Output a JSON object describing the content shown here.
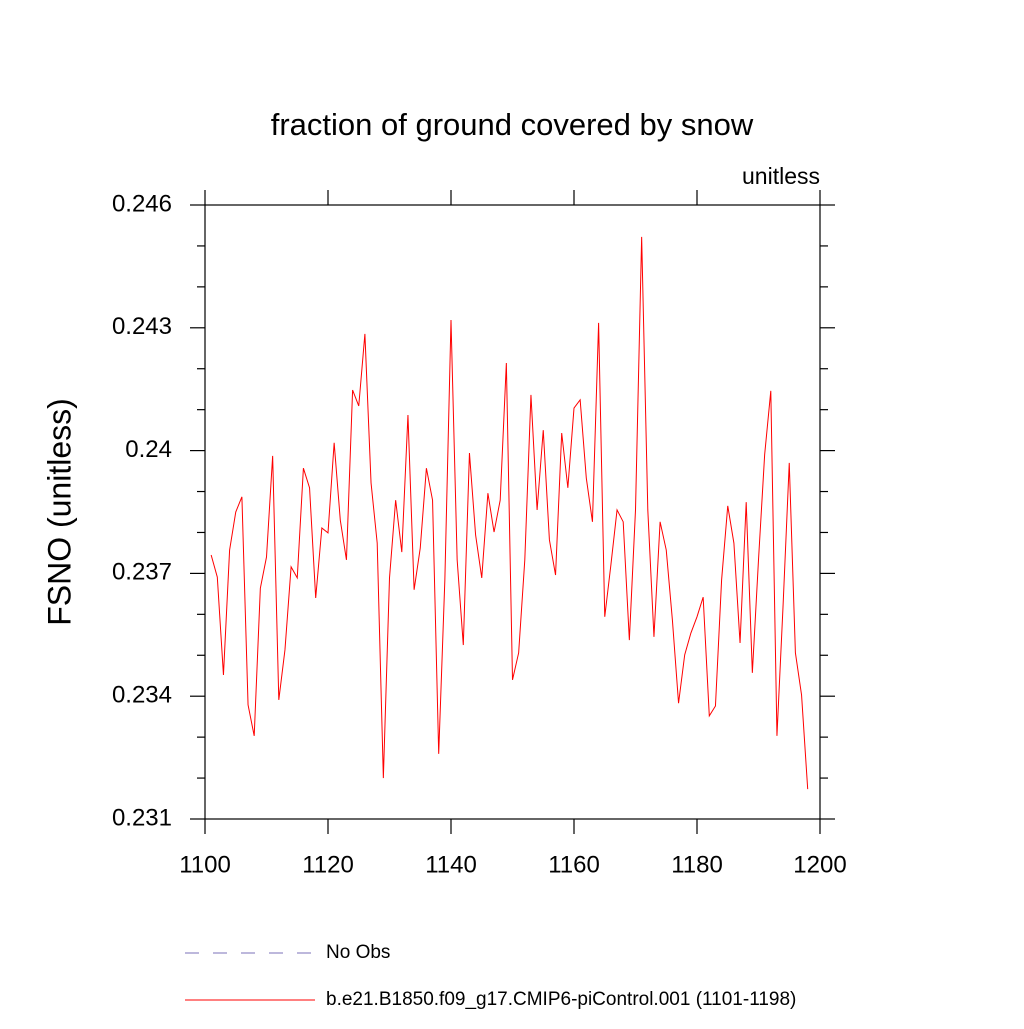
{
  "chart_data": {
    "type": "line",
    "title": "fraction of ground covered by snow",
    "subtitle_right": "unitless",
    "y_label": "FSNO  (unitless)",
    "xlim": [
      1100,
      1200
    ],
    "ylim": [
      0.231,
      0.246
    ],
    "xticks": [
      1100,
      1120,
      1140,
      1160,
      1180,
      1200
    ],
    "yticks": [
      0.231,
      0.234,
      0.237,
      0.24,
      0.243,
      0.246
    ],
    "yminorticks": [
      0.232,
      0.233,
      0.235,
      0.236,
      0.238,
      0.239,
      0.241,
      0.242,
      0.244,
      0.245
    ],
    "legend_extra": [
      {
        "name": "No Obs",
        "color": "#7b72b8",
        "dash": "dashed"
      }
    ],
    "x": [
      1101,
      1102,
      1103,
      1104,
      1105,
      1106,
      1107,
      1108,
      1109,
      1110,
      1111,
      1112,
      1113,
      1114,
      1115,
      1116,
      1117,
      1118,
      1119,
      1120,
      1121,
      1122,
      1123,
      1124,
      1125,
      1126,
      1127,
      1128,
      1129,
      1130,
      1131,
      1132,
      1133,
      1134,
      1135,
      1136,
      1137,
      1138,
      1139,
      1140,
      1141,
      1142,
      1143,
      1144,
      1145,
      1146,
      1147,
      1148,
      1149,
      1150,
      1151,
      1152,
      1153,
      1154,
      1155,
      1156,
      1157,
      1158,
      1159,
      1160,
      1161,
      1162,
      1163,
      1164,
      1165,
      1166,
      1167,
      1168,
      1169,
      1170,
      1171,
      1172,
      1173,
      1174,
      1175,
      1176,
      1177,
      1178,
      1179,
      1180,
      1181,
      1182,
      1183,
      1184,
      1185,
      1186,
      1187,
      1188,
      1189,
      1190,
      1191,
      1192,
      1193,
      1194,
      1195,
      1196,
      1197,
      1198
    ],
    "series": [
      {
        "name": "b.e21.B1850.f09_g17.CMIP6-piControl.001 (1101-1198)",
        "color": "#ff0000",
        "values": [
          0.23745,
          0.23691,
          0.23452,
          0.23757,
          0.2385,
          0.23887,
          0.23379,
          0.23303,
          0.23664,
          0.2374,
          0.23987,
          0.23391,
          0.23513,
          0.23716,
          0.23689,
          0.23957,
          0.23909,
          0.2364,
          0.23811,
          0.23799,
          0.24019,
          0.2383,
          0.23733,
          0.24148,
          0.24109,
          0.24285,
          0.23921,
          0.23774,
          0.232,
          0.23689,
          0.23879,
          0.23752,
          0.24087,
          0.2366,
          0.23762,
          0.23957,
          0.23879,
          0.23259,
          0.23684,
          0.24319,
          0.23733,
          0.23525,
          0.23994,
          0.23794,
          0.23689,
          0.23896,
          0.23801,
          0.23879,
          0.24214,
          0.2344,
          0.23506,
          0.23733,
          0.24136,
          0.23855,
          0.2405,
          0.23782,
          0.23696,
          0.24043,
          0.23909,
          0.24104,
          0.24124,
          0.23933,
          0.23826,
          0.24312,
          0.23594,
          0.23721,
          0.23855,
          0.23826,
          0.23537,
          0.23855,
          0.24522,
          0.23855,
          0.23545,
          0.23826,
          0.23757,
          0.23586,
          0.23383,
          0.23501,
          0.23554,
          0.23594,
          0.23642,
          0.23352,
          0.23376,
          0.23684,
          0.23865,
          0.23774,
          0.2353,
          0.23874,
          0.23457,
          0.23733,
          0.2399,
          0.24146,
          0.23303,
          0.23623,
          0.2397,
          0.23506,
          0.23403,
          0.23173
        ]
      }
    ]
  }
}
